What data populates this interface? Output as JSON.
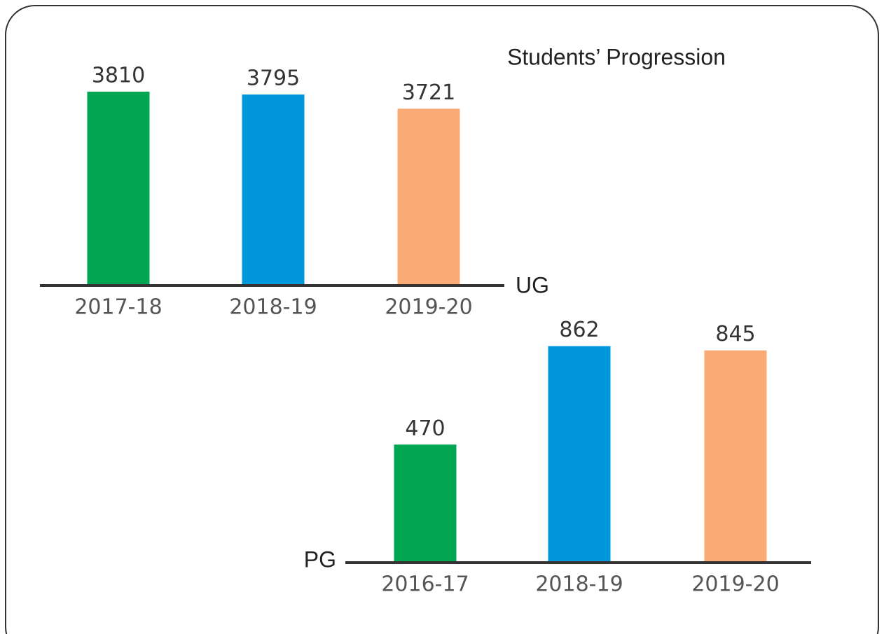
{
  "chart_data": [
    {
      "type": "bar",
      "title": "Students’ Progression",
      "axis_label": "UG",
      "categories": [
        "2017-18",
        "2018-19",
        "2019-20"
      ],
      "values": [
        3810,
        3795,
        3721
      ],
      "colors": [
        "#00a651",
        "#0098da",
        "#f9aa75"
      ],
      "ylim": [
        2800,
        3850
      ]
    },
    {
      "type": "bar",
      "axis_label": "PG",
      "categories": [
        "2016-17",
        "2018-19",
        "2019-20"
      ],
      "values": [
        470,
        862,
        845
      ],
      "colors": [
        "#00a651",
        "#0098da",
        "#f9aa75"
      ],
      "ylim": [
        0,
        900
      ]
    }
  ]
}
